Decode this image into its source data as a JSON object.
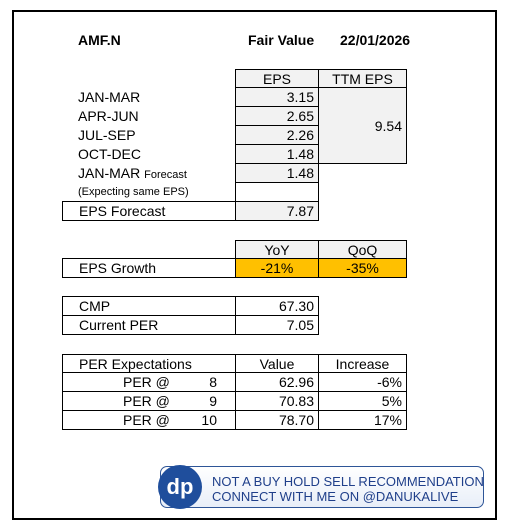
{
  "header": {
    "ticker": "AMF.N",
    "label": "Fair Value",
    "date": "22/01/2026"
  },
  "eps_table": {
    "headers": [
      "EPS",
      "TTM EPS"
    ],
    "rows": [
      {
        "label": "JAN-MAR",
        "eps": "3.15"
      },
      {
        "label": "APR-JUN",
        "eps": "2.65"
      },
      {
        "label": "JUL-SEP",
        "eps": "2.26"
      },
      {
        "label": "OCT-DEC",
        "eps": "1.48"
      }
    ],
    "ttm_eps": "9.54",
    "forecast": {
      "label": "JAN-MAR",
      "label_suffix": "Forecast",
      "note": "(Expecting same EPS)",
      "eps": "1.48"
    },
    "eps_forecast": {
      "label": "EPS Forecast",
      "value": "7.87"
    }
  },
  "growth": {
    "headers": [
      "YoY",
      "QoQ"
    ],
    "label": "EPS Growth",
    "yoy": "-21%",
    "qoq": "-35%"
  },
  "valuation": {
    "rows": [
      {
        "label": "CMP",
        "value": "67.30"
      },
      {
        "label": "Current PER",
        "value": "7.05"
      }
    ]
  },
  "per_table": {
    "headers": [
      "PER Expectations",
      "Value",
      "Increase"
    ],
    "rows": [
      {
        "label": "PER @",
        "per": "8",
        "value": "62.96",
        "increase": "-6%"
      },
      {
        "label": "PER @",
        "per": "9",
        "value": "70.83",
        "increase": "5%"
      },
      {
        "label": "PER @",
        "per": "10",
        "value": "78.70",
        "increase": "17%"
      }
    ]
  },
  "banner": {
    "logo": "dp",
    "lines": [
      "NOT A BUY HOLD SELL RECOMMENDATION",
      "CONNECT WITH ME ON @DANUKALIVE"
    ]
  }
}
